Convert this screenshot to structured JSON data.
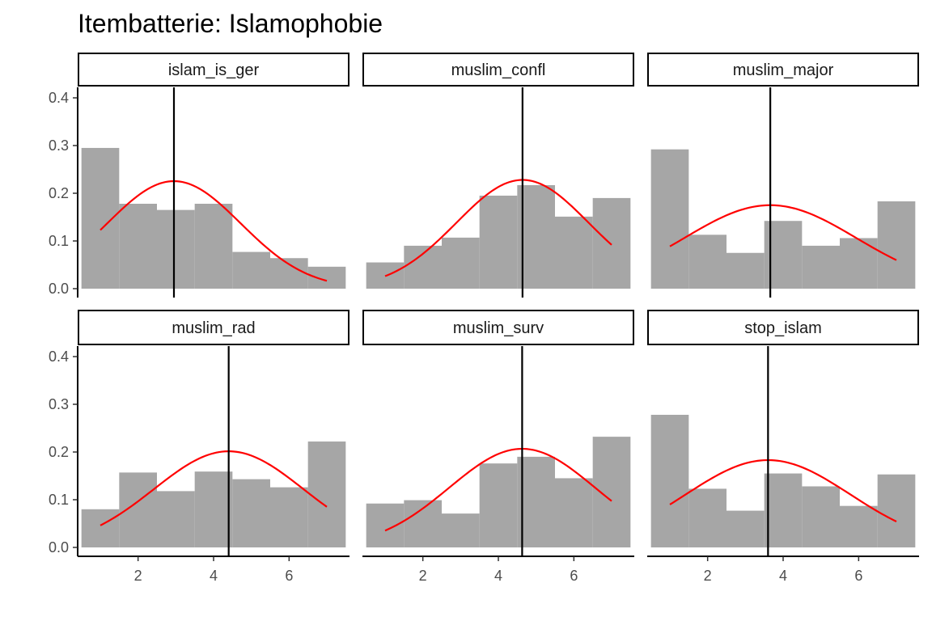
{
  "chart_data": {
    "type": "histogram",
    "title": "Itembatterie: Islamophobie",
    "xlabel": "",
    "ylabel": "",
    "xlim": [
      0.4,
      7.6
    ],
    "ylim": [
      0,
      0.42
    ],
    "x_ticks": [
      2,
      4,
      6
    ],
    "y_ticks": [
      0.0,
      0.1,
      0.2,
      0.3,
      0.4
    ],
    "y_tick_labels": [
      "0.0",
      "0.1",
      "0.2",
      "0.3",
      "0.4"
    ],
    "bin_edges": [
      0.5,
      1.5,
      2.5,
      3.5,
      4.5,
      5.5,
      6.5,
      7.5
    ],
    "curve_x_range": [
      1,
      7
    ],
    "bar_color": "#a6a6a6",
    "curve_color": "#ff0000",
    "mean_line_color": "#000000",
    "panels": [
      {
        "name": "islam_is_ger",
        "densities": [
          0.295,
          0.178,
          0.165,
          0.178,
          0.077,
          0.064,
          0.046
        ],
        "mean": 2.95,
        "sd": 1.77
      },
      {
        "name": "muslim_confl",
        "densities": [
          0.055,
          0.09,
          0.107,
          0.195,
          0.217,
          0.151,
          0.19
        ],
        "mean": 4.64,
        "sd": 1.75
      },
      {
        "name": "muslim_major",
        "densities": [
          0.292,
          0.113,
          0.075,
          0.142,
          0.09,
          0.106,
          0.183
        ],
        "mean": 3.66,
        "sd": 2.28
      },
      {
        "name": "muslim_rad",
        "densities": [
          0.08,
          0.157,
          0.118,
          0.159,
          0.143,
          0.126,
          0.222
        ],
        "mean": 4.4,
        "sd": 1.98
      },
      {
        "name": "muslim_surv",
        "densities": [
          0.092,
          0.099,
          0.071,
          0.176,
          0.19,
          0.145,
          0.232
        ],
        "mean": 4.63,
        "sd": 1.93
      },
      {
        "name": "stop_islam",
        "densities": [
          0.278,
          0.123,
          0.077,
          0.155,
          0.128,
          0.087,
          0.153
        ],
        "mean": 3.6,
        "sd": 2.18
      }
    ]
  }
}
